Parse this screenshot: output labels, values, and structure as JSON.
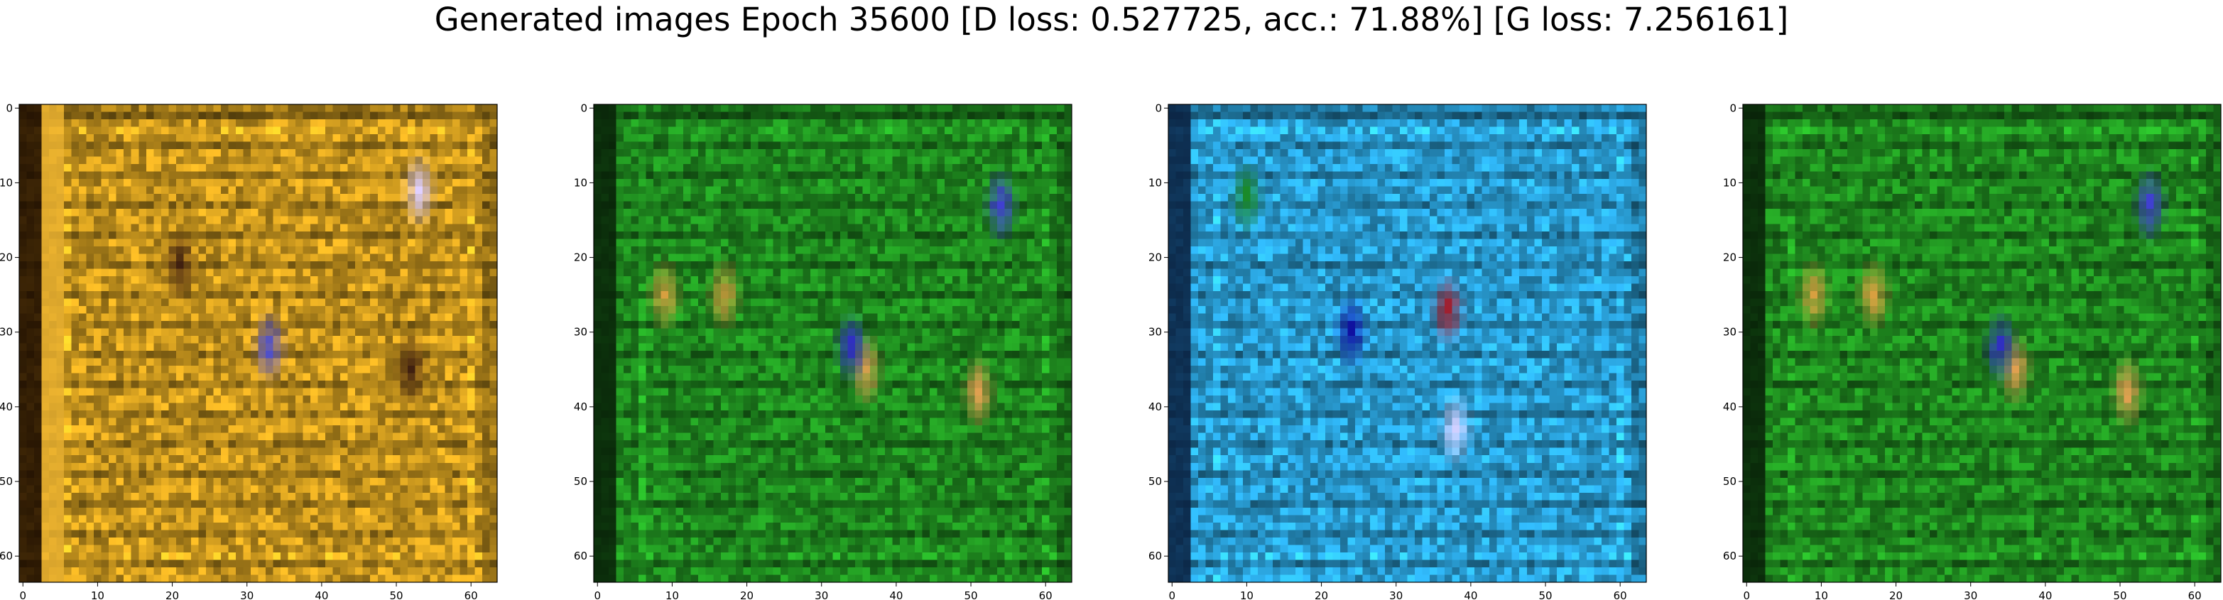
{
  "figure": {
    "suptitle": "Generated images Epoch 35600 [D loss: 0.527725, acc.: 71.88%] [G loss: 7.256161]"
  },
  "chart_data": [
    {
      "type": "heatmap",
      "panel": 1,
      "xlim": [
        -0.5,
        63.5
      ],
      "ylim": [
        63.5,
        -0.5
      ],
      "xticks": [
        "0",
        "10",
        "20",
        "30",
        "40",
        "50",
        "60"
      ],
      "yticks": [
        "0",
        "10",
        "20",
        "30",
        "40",
        "50",
        "60"
      ],
      "base_color": "#c8961e",
      "features": [
        {
          "shape": "vertical-band",
          "x": [
            0,
            2
          ],
          "color": "#1a0a00"
        },
        {
          "shape": "vertical-band",
          "x": [
            3,
            5
          ],
          "color": "#e8b030"
        },
        {
          "shape": "blob",
          "x": 33,
          "y": 32,
          "color": "#5050c8"
        },
        {
          "shape": "blob",
          "x": 21,
          "y": 21,
          "color": "#402010"
        },
        {
          "shape": "blob",
          "x": 53,
          "y": 11,
          "color": "#e0d0ff"
        },
        {
          "shape": "blob",
          "x": 52,
          "y": 35,
          "color": "#402010"
        }
      ]
    },
    {
      "type": "heatmap",
      "panel": 2,
      "xlim": [
        -0.5,
        63.5
      ],
      "ylim": [
        63.5,
        -0.5
      ],
      "xticks": [
        "0",
        "10",
        "20",
        "30",
        "40",
        "50",
        "60"
      ],
      "yticks": [
        "0",
        "10",
        "20",
        "30",
        "40",
        "50",
        "60"
      ],
      "base_color": "#1f8a1f",
      "features": [
        {
          "shape": "vertical-band",
          "x": [
            0,
            2
          ],
          "color": "#082008"
        },
        {
          "shape": "blob",
          "x": 17,
          "y": 25,
          "color": "#d8a040"
        },
        {
          "shape": "blob",
          "x": 9,
          "y": 25,
          "color": "#d8a040"
        },
        {
          "shape": "blob",
          "x": 54,
          "y": 13,
          "color": "#4040d0"
        },
        {
          "shape": "blob",
          "x": 36,
          "y": 35,
          "color": "#e0a050"
        },
        {
          "shape": "blob",
          "x": 34,
          "y": 32,
          "color": "#3030c0"
        },
        {
          "shape": "blob",
          "x": 51,
          "y": 38,
          "color": "#e0a050"
        }
      ]
    },
    {
      "type": "heatmap",
      "panel": 3,
      "xlim": [
        -0.5,
        63.5
      ],
      "ylim": [
        63.5,
        -0.5
      ],
      "xticks": [
        "0",
        "10",
        "20",
        "30",
        "40",
        "50",
        "60"
      ],
      "yticks": [
        "0",
        "10",
        "20",
        "30",
        "40",
        "50",
        "60"
      ],
      "base_color": "#2aa0d8",
      "features": [
        {
          "shape": "vertical-band",
          "x": [
            0,
            2
          ],
          "color": "#0a2040"
        },
        {
          "shape": "blob",
          "x": 10,
          "y": 12,
          "color": "#1a8a2a"
        },
        {
          "shape": "blob",
          "x": 37,
          "y": 27,
          "color": "#a02030"
        },
        {
          "shape": "blob",
          "x": 24,
          "y": 30,
          "color": "#1010a0"
        },
        {
          "shape": "blob",
          "x": 38,
          "y": 43,
          "color": "#d0d0ff"
        }
      ]
    },
    {
      "type": "heatmap",
      "panel": 4,
      "xlim": [
        -0.5,
        63.5
      ],
      "ylim": [
        63.5,
        -0.5
      ],
      "xticks": [
        "0",
        "10",
        "20",
        "30",
        "40",
        "50",
        "60"
      ],
      "yticks": [
        "0",
        "10",
        "20",
        "30",
        "40",
        "50",
        "60"
      ],
      "base_color": "#1f8a1f",
      "features": [
        {
          "shape": "vertical-band",
          "x": [
            0,
            2
          ],
          "color": "#082008"
        },
        {
          "shape": "blob",
          "x": 17,
          "y": 25,
          "color": "#d8a040"
        },
        {
          "shape": "blob",
          "x": 9,
          "y": 25,
          "color": "#d8a040"
        },
        {
          "shape": "blob",
          "x": 54,
          "y": 13,
          "color": "#4040d0"
        },
        {
          "shape": "blob",
          "x": 36,
          "y": 35,
          "color": "#e0a050"
        },
        {
          "shape": "blob",
          "x": 34,
          "y": 32,
          "color": "#3030c0"
        },
        {
          "shape": "blob",
          "x": 51,
          "y": 38,
          "color": "#e0a050"
        }
      ]
    }
  ]
}
